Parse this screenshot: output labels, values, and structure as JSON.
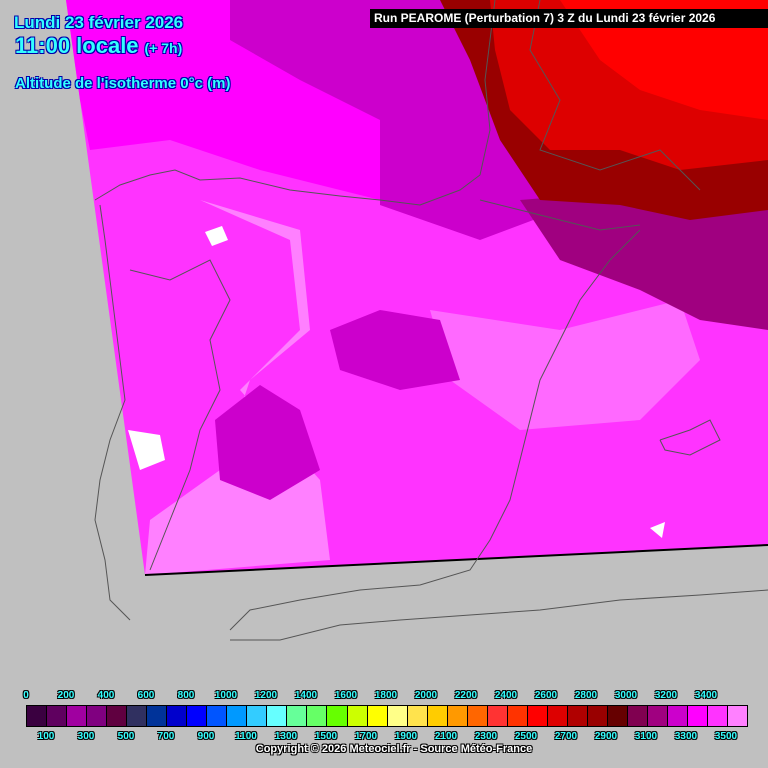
{
  "header": {
    "date": "Lundi 23 février 2026",
    "time": "11:00 locale",
    "lead": "(+ 7h)",
    "parameter": "Altitude de l'isotherme 0°c (m)",
    "run": "Run PEAROME (Perturbation 7) 3 Z du Lundi 23 février 2026"
  },
  "legend": {
    "unit": "m",
    "top_labels": [
      "0",
      "200",
      "400",
      "600",
      "800",
      "1000",
      "1200",
      "1400",
      "1600",
      "1800",
      "2000",
      "2200",
      "2400",
      "2600",
      "2800",
      "3000",
      "3200",
      "3400"
    ],
    "bottom_labels": [
      "100",
      "300",
      "500",
      "700",
      "900",
      "1100",
      "1300",
      "1500",
      "1700",
      "1900",
      "2100",
      "2300",
      "2500",
      "2700",
      "2900",
      "3100",
      "3300",
      "3500"
    ],
    "colors": [
      "#3a0040",
      "#5f005f",
      "#a000a0",
      "#800080",
      "#600040",
      "#303060",
      "#003399",
      "#0000cc",
      "#0000ff",
      "#0055ff",
      "#0099ff",
      "#33ccff",
      "#66ffff",
      "#66ff99",
      "#66ff66",
      "#66ff00",
      "#ccff00",
      "#ffff00",
      "#ffff88",
      "#ffe34d",
      "#ffcc00",
      "#ff9900",
      "#ff6600",
      "#ff3333",
      "#ff3300",
      "#ff0000",
      "#dd0000",
      "#b00000",
      "#990000",
      "#660000",
      "#800050",
      "#a00080",
      "#cc00cc",
      "#ff00ff",
      "#ff33ff",
      "#ff80ff"
    ]
  },
  "copyright": "Copyright © 2026 Meteociel.fr - Source Météo-France"
}
